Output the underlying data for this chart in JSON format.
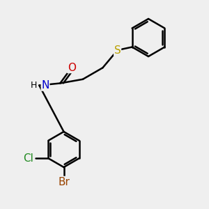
{
  "background_color": "#efefef",
  "bond_color": "#000000",
  "bond_width": 1.8,
  "atom_colors": {
    "S": "#b8a000",
    "N": "#0000cc",
    "O": "#cc0000",
    "Cl": "#228B22",
    "Br": "#994400",
    "C": "#000000",
    "H": "#000000"
  },
  "font_size": 10,
  "fig_width": 3.0,
  "fig_height": 3.0,
  "dpi": 100
}
